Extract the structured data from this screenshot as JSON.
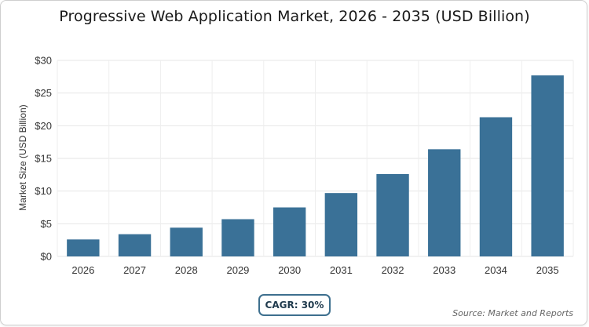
{
  "chart_data": {
    "type": "bar",
    "title": "Progressive Web Application Market, 2026 - 2035 (USD Billion)",
    "xlabel": "",
    "ylabel": "Market Size (USD Billion)",
    "categories": [
      "2026",
      "2027",
      "2028",
      "2029",
      "2030",
      "2031",
      "2032",
      "2033",
      "2034",
      "2035"
    ],
    "values": [
      2.6,
      3.4,
      4.4,
      5.7,
      7.5,
      9.7,
      12.6,
      16.4,
      21.3,
      27.7
    ],
    "ylim": [
      0,
      30
    ],
    "yticks": [
      0,
      5,
      10,
      15,
      20,
      25,
      30
    ],
    "ytick_labels": [
      "$0",
      "$5",
      "$10",
      "$15",
      "$20",
      "$25",
      "$30"
    ],
    "grid": true,
    "bar_color": "#3a7197",
    "annotations": [
      "CAGR: 30%"
    ],
    "source": "Source: Market and Reports"
  }
}
